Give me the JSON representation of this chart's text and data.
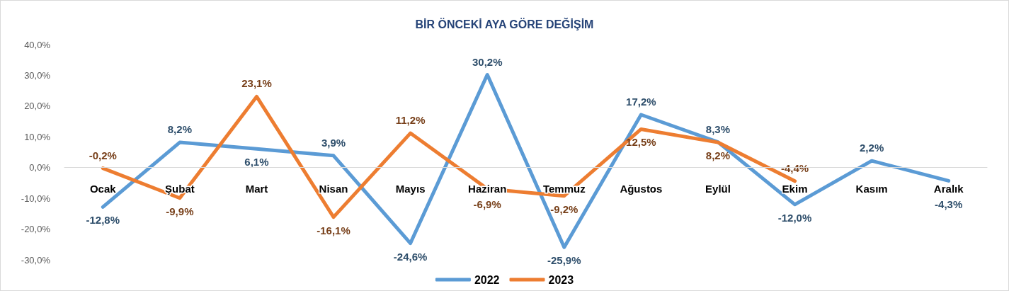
{
  "chart_data": {
    "type": "line",
    "title": "BİR ÖNCEKİ AYA GÖRE DEĞİŞİM",
    "categories": [
      "Ocak",
      "Şubat",
      "Mart",
      "Nisan",
      "Mayıs",
      "Haziran",
      "Temmuz",
      "Ağustos",
      "Eylül",
      "Ekim",
      "Kasım",
      "Aralık"
    ],
    "series": [
      {
        "name": "2022",
        "color": "#5b9bd5",
        "values": [
          -12.8,
          8.2,
          6.1,
          3.9,
          -24.6,
          30.2,
          -25.9,
          17.2,
          8.3,
          -12.0,
          2.2,
          -4.3
        ],
        "value_labels": [
          "-12,8%",
          "8,2%",
          "6,1%",
          "3,9%",
          "-24,6%",
          "30,2%",
          "-25,9%",
          "17,2%",
          "8,3%",
          "-12,0%",
          "2,2%",
          "-4,3%"
        ]
      },
      {
        "name": "2023",
        "color": "#ed7d31",
        "values": [
          -0.2,
          -9.9,
          23.1,
          -16.1,
          11.2,
          -6.9,
          -9.2,
          12.5,
          8.2,
          -4.4,
          null,
          null
        ],
        "value_labels": [
          "-0,2%",
          "-9,9%",
          "23,1%",
          "-16,1%",
          "11,2%",
          "-6,9%",
          "-9,2%",
          "12,5%",
          "8,2%",
          "-4,4%",
          null,
          null
        ]
      }
    ],
    "ylim": [
      -30,
      40
    ],
    "yticks": [
      {
        "value": -30,
        "label": "-30,0%"
      },
      {
        "value": -20,
        "label": "-20,0%"
      },
      {
        "value": -10,
        "label": "-10,0%"
      },
      {
        "value": 0,
        "label": "0,0%"
      },
      {
        "value": 10,
        "label": "10,0%"
      },
      {
        "value": 20,
        "label": "20,0%"
      },
      {
        "value": 30,
        "label": "30,0%"
      },
      {
        "value": 40,
        "label": "40,0%"
      }
    ],
    "grid": false,
    "legend": "bottom",
    "marker": "none",
    "line_style": "solid"
  }
}
